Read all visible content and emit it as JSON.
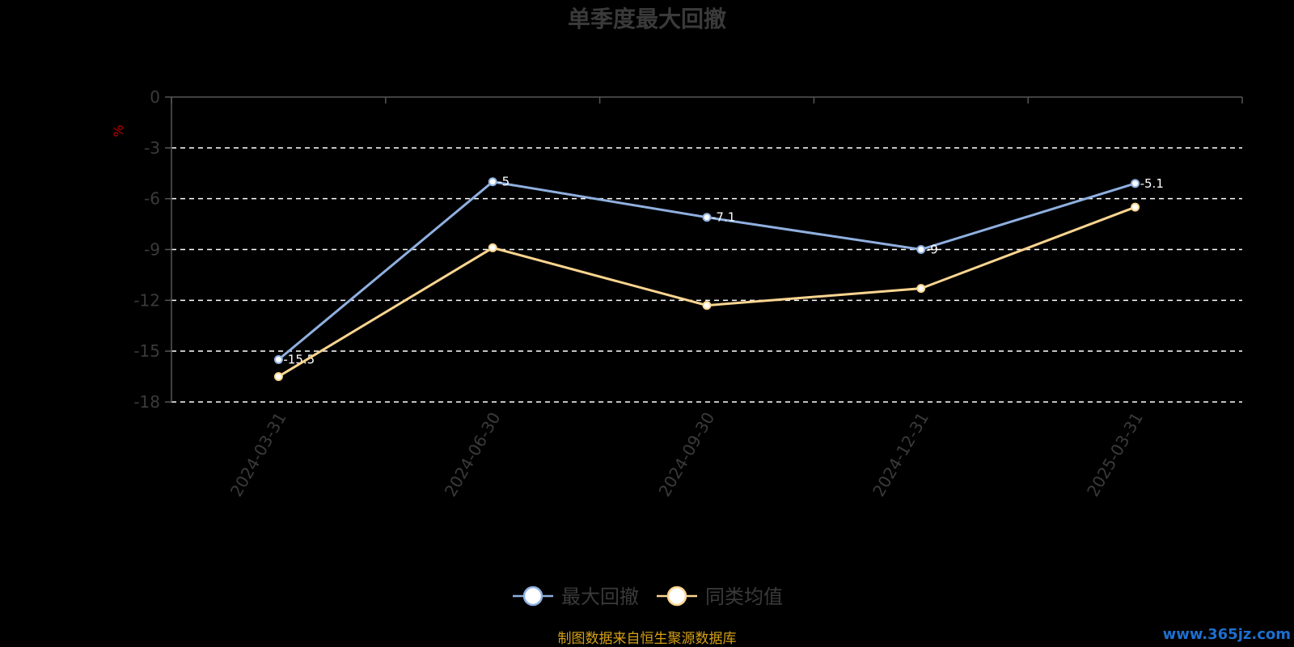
{
  "chart_data": {
    "type": "line",
    "title": "单季度最大回撤",
    "ylabel": "%",
    "categories": [
      "2024-03-31",
      "2024-06-30",
      "2024-09-30",
      "2024-12-31",
      "2025-03-31"
    ],
    "ylim": [
      -18,
      0
    ],
    "yticks": [
      0,
      -3,
      -6,
      -9,
      -12,
      -15,
      -18
    ],
    "grid": true,
    "legend_position": "bottom",
    "series": [
      {
        "name": "最大回撤",
        "values": [
          -15.5,
          -5.0,
          -7.1,
          -9.0,
          -5.1
        ],
        "color": "#8fb0e0"
      },
      {
        "name": "同类均值",
        "values": [
          -16.5,
          -8.9,
          -12.3,
          -11.3,
          -6.5
        ],
        "color": "#fcd590"
      }
    ]
  },
  "source_text": "制图数据来自恒生聚源数据库",
  "watermark_text": "www.365jz.com",
  "colors": {
    "background": "#000000",
    "text": "#3a3a3a",
    "grid": "#ffffff",
    "unit": "#c00000",
    "source": "#d4a017"
  }
}
